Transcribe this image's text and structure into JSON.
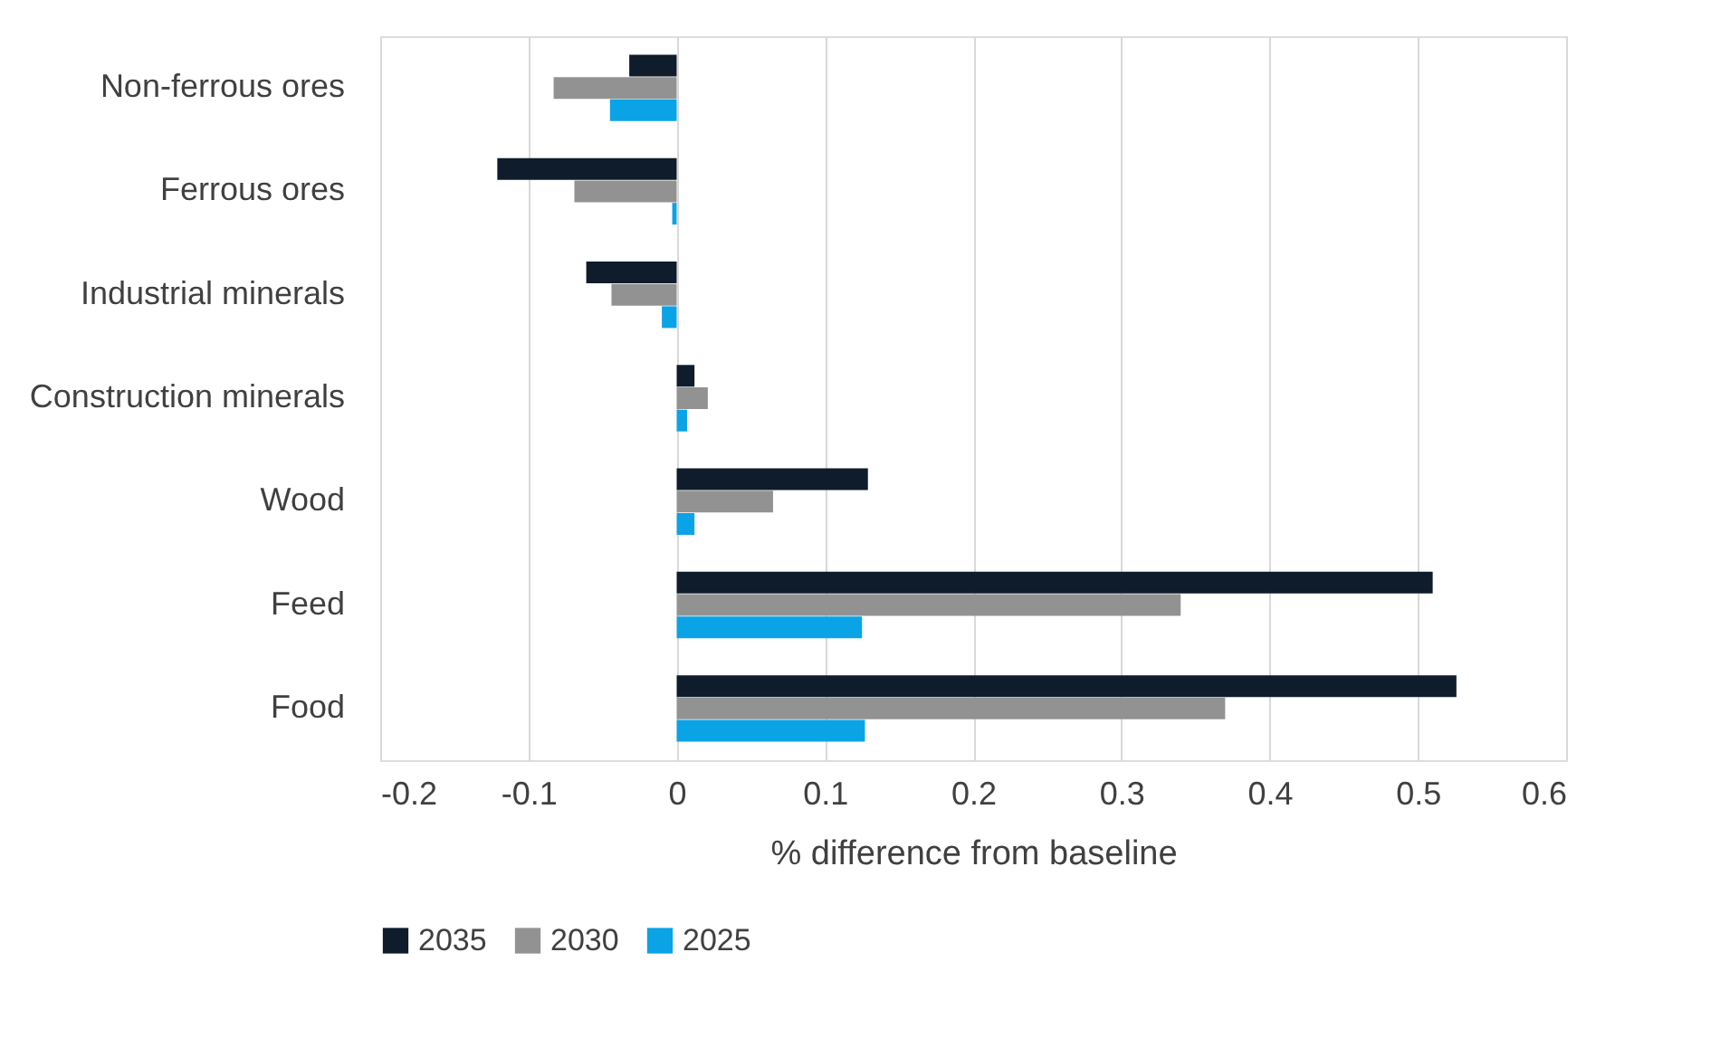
{
  "chart_data": {
    "type": "bar",
    "orientation": "horizontal",
    "xlabel": "% difference from baseline",
    "categories": [
      "Non-ferrous ores",
      "Ferrous ores",
      "Industrial minerals",
      "Construction minerals",
      "Wood",
      "Feed",
      "Food"
    ],
    "series": [
      {
        "name": "2035",
        "color": "#0e1c2b",
        "values": [
          -0.032,
          -0.121,
          -0.061,
          0.012,
          0.129,
          0.51,
          0.526
        ]
      },
      {
        "name": "2030",
        "color": "#929292",
        "values": [
          -0.083,
          -0.069,
          -0.044,
          0.021,
          0.065,
          0.34,
          0.37
        ]
      },
      {
        "name": "2025",
        "color": "#0aa3e6",
        "values": [
          -0.045,
          -0.003,
          -0.01,
          0.007,
          0.012,
          0.125,
          0.127
        ]
      }
    ],
    "xlim": [
      -0.2,
      0.6
    ],
    "xticks": [
      -0.2,
      -0.1,
      0,
      0.1,
      0.2,
      0.3,
      0.4,
      0.5,
      0.6
    ],
    "grid": "x",
    "legend": "bottom"
  }
}
